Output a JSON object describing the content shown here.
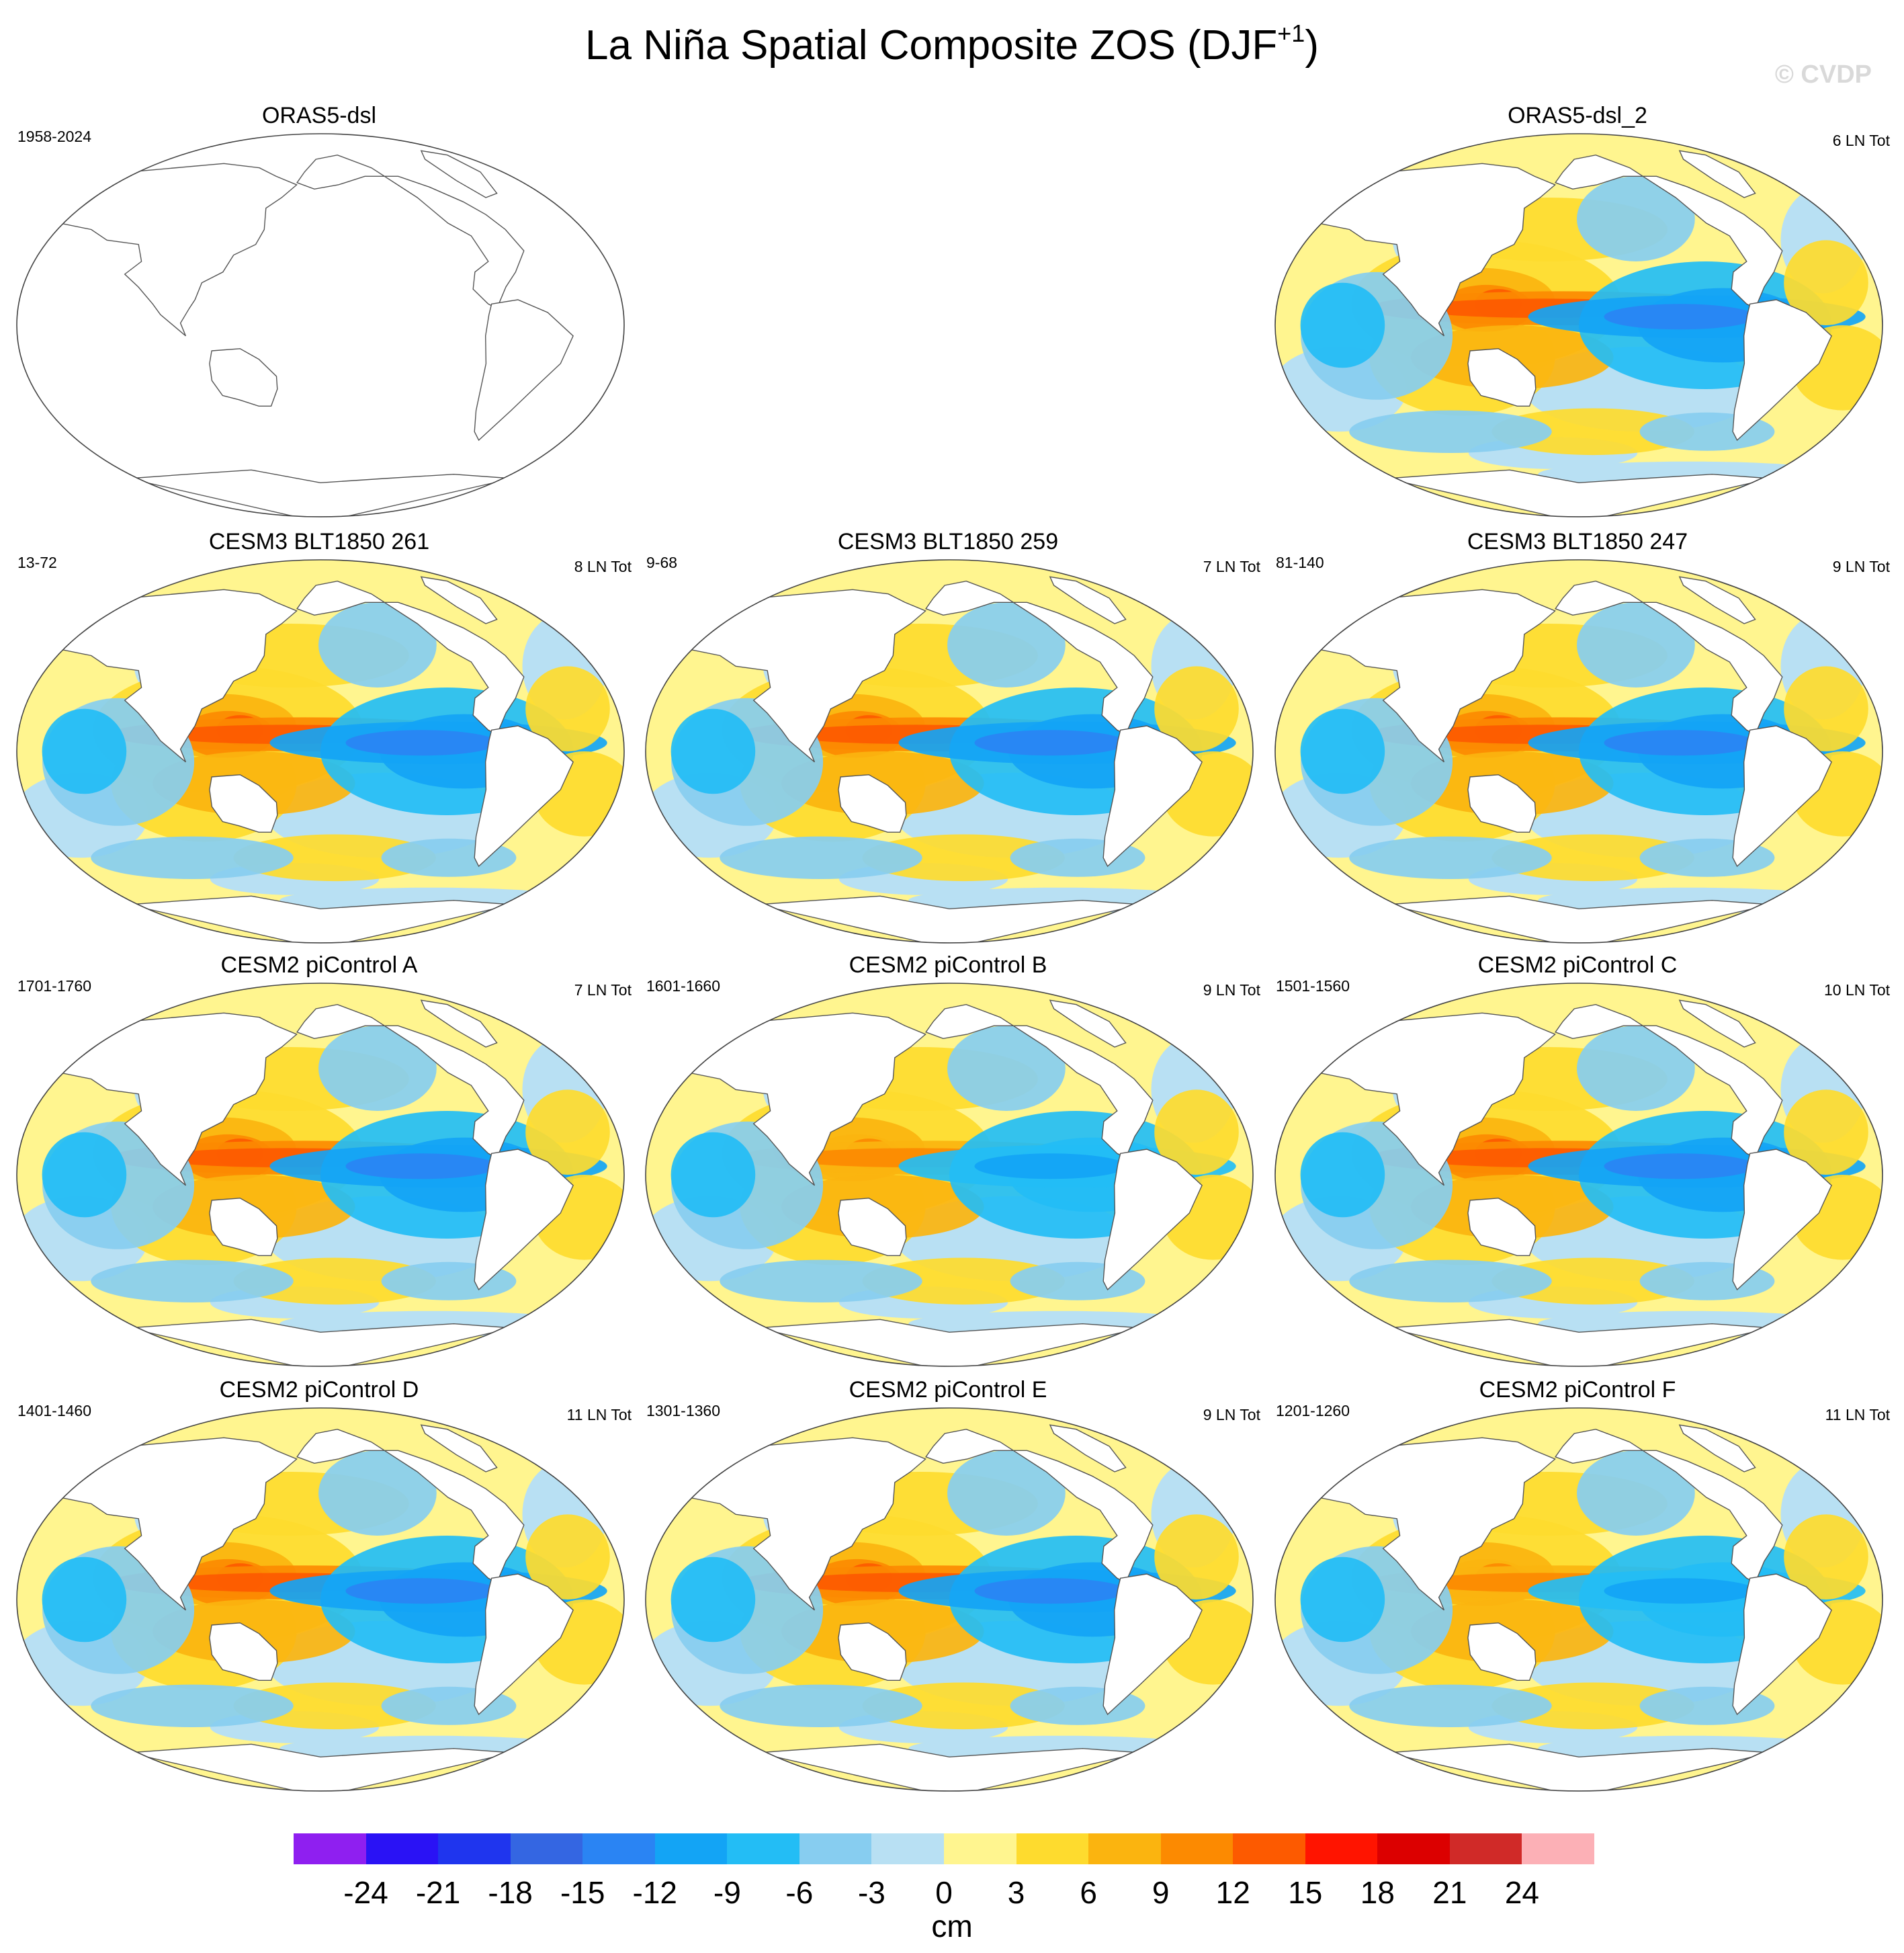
{
  "figure": {
    "title": "La Niña Spatial Composite ZOS (DJF",
    "title_superscript": "+1",
    "title_close": ")",
    "watermark": "© CVDP"
  },
  "panels": [
    {
      "id": "orass5",
      "title": "ORAS5-dsl",
      "period": "1958-2024",
      "count": "",
      "empty": true
    },
    {
      "id": "orass5_2",
      "title": "ORAS5-dsl_2",
      "period": "",
      "count": "6 LN Tot",
      "empty": false,
      "strength": 0.9
    },
    {
      "id": "blt261",
      "title": "CESM3 BLT1850 261",
      "period": "13-72",
      "count": "8 LN Tot",
      "empty": false,
      "strength": 1.0
    },
    {
      "id": "blt259",
      "title": "CESM3 BLT1850 259",
      "period": "9-68",
      "count": "7 LN Tot",
      "empty": false,
      "strength": 0.95
    },
    {
      "id": "blt247",
      "title": "CESM3 BLT1850 247",
      "period": "81-140",
      "count": "9 LN Tot",
      "empty": false,
      "strength": 1.0
    },
    {
      "id": "picA",
      "title": "CESM2 piControl A",
      "period": "1701-1760",
      "count": "7 LN Tot",
      "empty": false,
      "strength": 1.0
    },
    {
      "id": "picB",
      "title": "CESM2 piControl B",
      "period": "1601-1660",
      "count": "9 LN Tot",
      "empty": false,
      "strength": 0.85
    },
    {
      "id": "picC",
      "title": "CESM2 piControl C",
      "period": "1501-1560",
      "count": "10 LN Tot",
      "empty": false,
      "strength": 1.0
    },
    {
      "id": "picD",
      "title": "CESM2 piControl D",
      "period": "1401-1460",
      "count": "11 LN Tot",
      "empty": false,
      "strength": 0.9
    },
    {
      "id": "picE",
      "title": "CESM2 piControl E",
      "period": "1301-1360",
      "count": "9 LN Tot",
      "empty": false,
      "strength": 0.95
    },
    {
      "id": "picF",
      "title": "CESM2 piControl F",
      "period": "1201-1260",
      "count": "11 LN Tot",
      "empty": false,
      "strength": 0.8
    }
  ],
  "colorbar": {
    "units": "cm",
    "ticks": [
      "-24",
      "-21",
      "-18",
      "-15",
      "-12",
      "-9",
      "-6",
      "-3",
      "0",
      "3",
      "6",
      "9",
      "12",
      "15",
      "18",
      "21",
      "24"
    ],
    "colors": [
      "#8f1ff0",
      "#2a12f5",
      "#1f35ee",
      "#3466e2",
      "#2a84f3",
      "#13a4f5",
      "#23bdf5",
      "#87cdf0",
      "#b8e0f3",
      "#fff58f",
      "#fedb2e",
      "#fbb40f",
      "#fc8a01",
      "#fd5a00",
      "#ff1400",
      "#dc0000",
      "#d02a28",
      "#fcb0b6"
    ]
  },
  "chart_data": {
    "type": "map-panel-grid",
    "projection": "Robinson (Pacific-centred)",
    "variable": "ZOS",
    "season": "DJF+1",
    "units": "cm",
    "contour_levels": [
      -24,
      -21,
      -18,
      -15,
      -12,
      -9,
      -6,
      -3,
      0,
      3,
      6,
      9,
      12,
      15,
      18,
      21,
      24
    ],
    "panels": [
      {
        "title": "ORAS5-dsl",
        "period": "1958-2024",
        "la_nina_events": null
      },
      {
        "title": "ORAS5-dsl_2",
        "period": "",
        "la_nina_events": 6
      },
      {
        "title": "CESM3 BLT1850 261",
        "period": "13-72",
        "la_nina_events": 8
      },
      {
        "title": "CESM3 BLT1850 259",
        "period": "9-68",
        "la_nina_events": 7
      },
      {
        "title": "CESM3 BLT1850 247",
        "period": "81-140",
        "la_nina_events": 9
      },
      {
        "title": "CESM2 piControl A",
        "period": "1701-1760",
        "la_nina_events": 7
      },
      {
        "title": "CESM2 piControl B",
        "period": "1601-1660",
        "la_nina_events": 9
      },
      {
        "title": "CESM2 piControl C",
        "period": "1501-1560",
        "la_nina_events": 10
      },
      {
        "title": "CESM2 piControl D",
        "period": "1401-1460",
        "la_nina_events": 11
      },
      {
        "title": "CESM2 piControl E",
        "period": "1301-1360",
        "la_nina_events": 9
      },
      {
        "title": "CESM2 piControl F",
        "period": "1201-1260",
        "la_nina_events": 11
      }
    ]
  }
}
